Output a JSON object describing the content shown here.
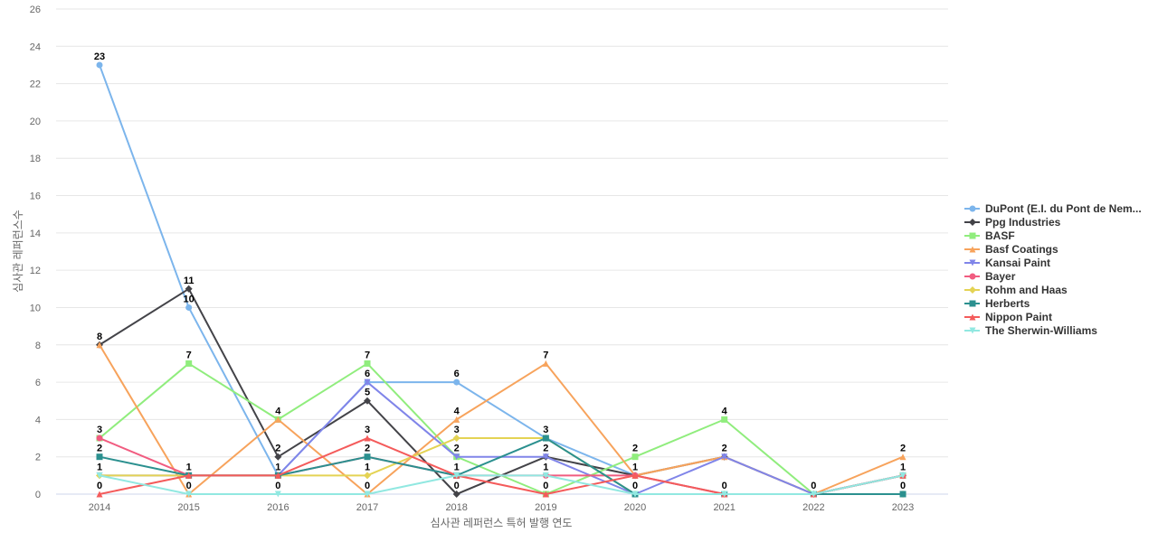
{
  "chart_data": {
    "type": "line",
    "xlabel": "심사관 레퍼런스 특허 발행 연도",
    "ylabel": "심사관 레퍼런스수",
    "ylim": [
      0,
      26
    ],
    "y_ticks": [
      0,
      2,
      4,
      6,
      8,
      10,
      12,
      14,
      16,
      18,
      20,
      22,
      24,
      26
    ],
    "categories": [
      "2014",
      "2015",
      "2016",
      "2017",
      "2018",
      "2019",
      "2020",
      "2021",
      "2022",
      "2023"
    ],
    "grid": true,
    "legend_position": "right",
    "series": [
      {
        "name": "DuPont (E.I. du Pont de Nem...",
        "color": "#7cb5ec",
        "marker": "circle",
        "values": [
          23,
          10,
          1,
          6,
          6,
          3,
          1,
          0,
          0,
          1
        ]
      },
      {
        "name": "Ppg Industries",
        "color": "#434348",
        "marker": "diamond",
        "values": [
          8,
          11,
          2,
          5,
          0,
          2,
          1,
          2,
          0,
          1
        ]
      },
      {
        "name": "BASF",
        "color": "#90ed7d",
        "marker": "square",
        "values": [
          3,
          7,
          4,
          7,
          2,
          0,
          2,
          4,
          0,
          1
        ]
      },
      {
        "name": "Basf Coatings",
        "color": "#f7a35c",
        "marker": "triangle",
        "values": [
          8,
          0,
          4,
          0,
          4,
          7,
          1,
          2,
          0,
          2
        ]
      },
      {
        "name": "Kansai Paint",
        "color": "#8085e9",
        "marker": "triangle-down",
        "values": [
          1,
          1,
          1,
          6,
          2,
          2,
          0,
          2,
          0,
          1
        ]
      },
      {
        "name": "Bayer",
        "color": "#f15c80",
        "marker": "circle",
        "values": [
          3,
          1,
          1,
          2,
          1,
          1,
          1,
          0,
          0,
          1
        ]
      },
      {
        "name": "Rohm and Haas",
        "color": "#e4d354",
        "marker": "diamond",
        "values": [
          1,
          1,
          1,
          1,
          3,
          3,
          0,
          0,
          0,
          0
        ]
      },
      {
        "name": "Herberts",
        "color": "#2b908f",
        "marker": "square",
        "values": [
          2,
          1,
          1,
          2,
          1,
          3,
          0,
          0,
          0,
          0
        ]
      },
      {
        "name": "Nippon Paint",
        "color": "#f45b5b",
        "marker": "triangle",
        "values": [
          0,
          1,
          1,
          3,
          1,
          0,
          1,
          0,
          0,
          1
        ]
      },
      {
        "name": "The Sherwin-Williams",
        "color": "#91e8e1",
        "marker": "triangle-down",
        "values": [
          1,
          0,
          0,
          0,
          1,
          1,
          0,
          0,
          0,
          1
        ]
      }
    ],
    "data_labels": [
      {
        "x": "2014",
        "y": 23,
        "text": "23"
      },
      {
        "x": "2014",
        "y": 8,
        "text": "8"
      },
      {
        "x": "2014",
        "y": 3,
        "text": "3"
      },
      {
        "x": "2014",
        "y": 2,
        "text": "2"
      },
      {
        "x": "2014",
        "y": 1,
        "text": "1"
      },
      {
        "x": "2014",
        "y": 0,
        "text": "0"
      },
      {
        "x": "2015",
        "y": 11,
        "text": "11"
      },
      {
        "x": "2015",
        "y": 10,
        "text": "10"
      },
      {
        "x": "2015",
        "y": 7,
        "text": "7"
      },
      {
        "x": "2015",
        "y": 1,
        "text": "1"
      },
      {
        "x": "2015",
        "y": 0,
        "text": "0"
      },
      {
        "x": "2016",
        "y": 4,
        "text": "4"
      },
      {
        "x": "2016",
        "y": 2,
        "text": "2"
      },
      {
        "x": "2016",
        "y": 1,
        "text": "1"
      },
      {
        "x": "2016",
        "y": 0,
        "text": "0"
      },
      {
        "x": "2017",
        "y": 7,
        "text": "7"
      },
      {
        "x": "2017",
        "y": 6,
        "text": "6"
      },
      {
        "x": "2017",
        "y": 5,
        "text": "5"
      },
      {
        "x": "2017",
        "y": 3,
        "text": "3"
      },
      {
        "x": "2017",
        "y": 2,
        "text": "2"
      },
      {
        "x": "2017",
        "y": 1,
        "text": "1"
      },
      {
        "x": "2017",
        "y": 0,
        "text": "0"
      },
      {
        "x": "2018",
        "y": 6,
        "text": "6"
      },
      {
        "x": "2018",
        "y": 4,
        "text": "4"
      },
      {
        "x": "2018",
        "y": 3,
        "text": "3"
      },
      {
        "x": "2018",
        "y": 2,
        "text": "2"
      },
      {
        "x": "2018",
        "y": 1,
        "text": "1"
      },
      {
        "x": "2018",
        "y": 0,
        "text": "0"
      },
      {
        "x": "2019",
        "y": 7,
        "text": "7"
      },
      {
        "x": "2019",
        "y": 3,
        "text": "3"
      },
      {
        "x": "2019",
        "y": 2,
        "text": "2"
      },
      {
        "x": "2019",
        "y": 1,
        "text": "1"
      },
      {
        "x": "2019",
        "y": 0,
        "text": "0"
      },
      {
        "x": "2020",
        "y": 2,
        "text": "2"
      },
      {
        "x": "2020",
        "y": 1,
        "text": "1"
      },
      {
        "x": "2020",
        "y": 0,
        "text": "0"
      },
      {
        "x": "2021",
        "y": 4,
        "text": "4"
      },
      {
        "x": "2021",
        "y": 2,
        "text": "2"
      },
      {
        "x": "2021",
        "y": 0,
        "text": "0"
      },
      {
        "x": "2022",
        "y": 0,
        "text": "0"
      },
      {
        "x": "2023",
        "y": 2,
        "text": "2"
      },
      {
        "x": "2023",
        "y": 1,
        "text": "1"
      },
      {
        "x": "2023",
        "y": 0,
        "text": "0"
      }
    ]
  }
}
